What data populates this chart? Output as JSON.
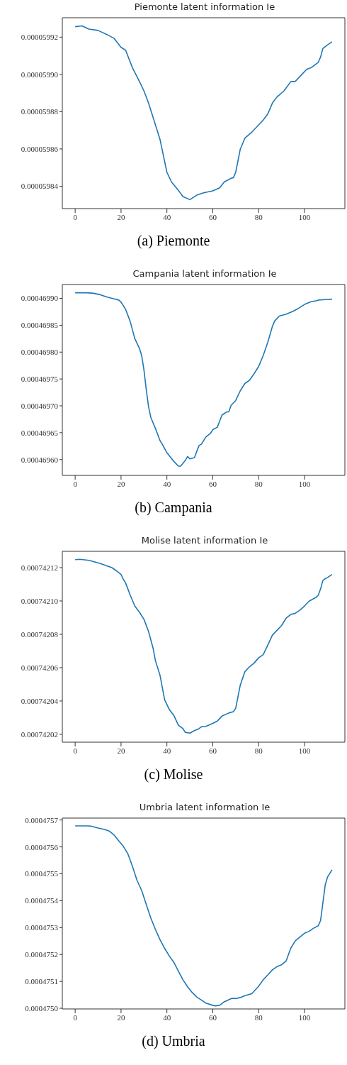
{
  "chart_data": [
    {
      "type": "line",
      "title": "Piemonte latent information Ie",
      "annotations": [
        "(a) Piemonte"
      ],
      "xlim": [
        -5.6,
        117.6
      ],
      "xticks": [
        0,
        20,
        40,
        60,
        80,
        100
      ],
      "ylim": [
        5.9828e-05,
        5.99304e-05
      ],
      "yticks": [
        {
          "value": 5.984e-05,
          "label": "0.00005984"
        },
        {
          "value": 5.986e-05,
          "label": "0.00005986"
        },
        {
          "value": 5.988e-05,
          "label": "0.00005988"
        },
        {
          "value": 5.99e-05,
          "label": "0.00005990"
        },
        {
          "value": 5.992e-05,
          "label": "0.00005992"
        }
      ],
      "x": [
        0,
        3,
        6,
        10,
        14,
        17,
        20,
        22,
        25,
        28,
        30,
        32,
        35,
        37,
        40,
        42,
        45,
        47,
        50,
        53,
        56,
        60,
        63,
        65,
        68,
        69,
        70,
        72,
        74,
        77,
        80,
        82,
        84,
        86,
        88,
        91,
        94,
        96,
        99,
        101,
        103,
        106,
        107,
        108,
        110,
        112
      ],
      "series": [
        {
          "color": "#1f77b4",
          "values": [
            5.99256e-05,
            5.9926e-05,
            5.99243e-05,
            5.99236e-05,
            5.99213e-05,
            5.99193e-05,
            5.99145e-05,
            5.9913e-05,
            5.99035e-05,
            5.98963e-05,
            5.98911e-05,
            5.98846e-05,
            5.98729e-05,
            5.98651e-05,
            5.98475e-05,
            5.98423e-05,
            5.98378e-05,
            5.98345e-05,
            5.98328e-05,
            5.98352e-05,
            5.98365e-05,
            5.98375e-05,
            5.98391e-05,
            5.98423e-05,
            5.98443e-05,
            5.98446e-05,
            5.98475e-05,
            5.98599e-05,
            5.98658e-05,
            5.9869e-05,
            5.98729e-05,
            5.98755e-05,
            5.98788e-05,
            5.98846e-05,
            5.98879e-05,
            5.98911e-05,
            5.98961e-05,
            5.98963e-05,
            5.99002e-05,
            5.99028e-05,
            5.99037e-05,
            5.99065e-05,
            5.99093e-05,
            5.99139e-05,
            5.99158e-05,
            5.99175e-05
          ]
        }
      ]
    },
    {
      "type": "line",
      "title": "Campania latent information Ie",
      "annotations": [
        "(b) Campania"
      ],
      "xlim": [
        -5.6,
        117.6
      ],
      "xticks": [
        0,
        20,
        40,
        60,
        80,
        100
      ],
      "ylim": [
        0.0004695706,
        0.0004699258
      ],
      "yticks": [
        {
          "value": 0.0004696,
          "label": "0.00046960"
        },
        {
          "value": 0.00046965,
          "label": "0.00046965"
        },
        {
          "value": 0.0004697,
          "label": "0.00046970"
        },
        {
          "value": 0.00046975,
          "label": "0.00046975"
        },
        {
          "value": 0.0004698,
          "label": "0.00046980"
        },
        {
          "value": 0.00046985,
          "label": "0.00046985"
        },
        {
          "value": 0.0004699,
          "label": "0.00046990"
        }
      ],
      "x": [
        0,
        5,
        8,
        11,
        14,
        17,
        19,
        20,
        22,
        24,
        26,
        28,
        29,
        30,
        31,
        32,
        33,
        35,
        37,
        38,
        40,
        43,
        45,
        46,
        48,
        49,
        50,
        52,
        54,
        55,
        57,
        59,
        60,
        62,
        64,
        66,
        67,
        68,
        70,
        72,
        74,
        76,
        78,
        80,
        82,
        84,
        86,
        87,
        89,
        92,
        95,
        97,
        100,
        103,
        105,
        106,
        109,
        112
      ],
      "series": [
        {
          "color": "#1f77b4",
          "values": [
            0.0004699104,
            0.0004699104,
            0.0004699095,
            0.0004699068,
            0.0004699023,
            0.0004698991,
            0.0004698969,
            0.0004698932,
            0.0004698796,
            0.000469857,
            0.0004698253,
            0.0004698072,
            0.0004697937,
            0.0004697665,
            0.0004697303,
            0.0004696986,
            0.0004696783,
            0.0004696579,
            0.0004696353,
            0.0004696285,
            0.0004696127,
            0.0004695968,
            0.0004695878,
            0.0004695878,
            0.0004695982,
            0.0004696059,
            0.0004696014,
            0.0004696036,
            0.0004696262,
            0.0004696285,
            0.0004696421,
            0.0004696489,
            0.0004696557,
            0.0004696602,
            0.0004696828,
            0.0004696887,
            0.0004696887,
            0.0004697009,
            0.00046971,
            0.0004697281,
            0.0004697416,
            0.0004697475,
            0.0004697597,
            0.0004697733,
            0.0004697937,
            0.0004698186,
            0.000469848,
            0.0004698579,
            0.000469867,
            0.0004698706,
            0.000469876,
            0.0004698805,
            0.0004698887,
            0.0004698941,
            0.0004698955,
            0.0004698969,
            0.0004698977,
            0.0004698986
          ]
        }
      ]
    },
    {
      "type": "line",
      "title": "Molise latent information Ie",
      "annotations": [
        "(c) Molise"
      ],
      "xlim": [
        -5.6,
        117.6
      ],
      "xticks": [
        0,
        20,
        40,
        60,
        80,
        100
      ],
      "ylim": [
        0.0007420153,
        0.0007421298
      ],
      "yticks": [
        {
          "value": 0.00074202,
          "label": "0.00074202"
        },
        {
          "value": 0.00074204,
          "label": "0.00074204"
        },
        {
          "value": 0.00074206,
          "label": "0.00074206"
        },
        {
          "value": 0.00074208,
          "label": "0.00074208"
        },
        {
          "value": 0.0007421,
          "label": "0.00074210"
        },
        {
          "value": 0.00074212,
          "label": "0.00074212"
        }
      ],
      "x": [
        0,
        2,
        6,
        8,
        11,
        14,
        16,
        18,
        20,
        21,
        22,
        24,
        26,
        28,
        30,
        32,
        34,
        35,
        37,
        39,
        41,
        43,
        45,
        47,
        48,
        50,
        52,
        54,
        55,
        57,
        60,
        62,
        64,
        67,
        69,
        70,
        72,
        74,
        76,
        78,
        80,
        82,
        84,
        86,
        88,
        90,
        92,
        94,
        96,
        98,
        100,
        102,
        105,
        106,
        107,
        108,
        109,
        110,
        112
      ],
      "series": [
        {
          "color": "#1f77b4",
          "values": [
            0.0007421248,
            0.000742125,
            0.0007421244,
            0.0007421236,
            0.0007421225,
            0.000742121,
            0.00074212,
            0.0007421181,
            0.0007421159,
            0.000742113,
            0.0007421108,
            0.0007421035,
            0.000742097,
            0.0007420933,
            0.000742089,
            0.0007420817,
            0.0007420715,
            0.0007420642,
            0.0007420554,
            0.0007420408,
            0.000742035,
            0.0007420314,
            0.0007420255,
            0.0007420234,
            0.0007420212,
            0.0007420207,
            0.0007420222,
            0.0007420234,
            0.0007420245,
            0.0007420248,
            0.0007420266,
            0.000742028,
            0.0007420309,
            0.0007420328,
            0.0007420336,
            0.0007420357,
            0.0007420496,
            0.0007420576,
            0.0007420605,
            0.0007420627,
            0.0007420659,
            0.0007420678,
            0.0007420736,
            0.0007420795,
            0.0007420824,
            0.0007420853,
            0.0007420897,
            0.0007420919,
            0.0007420926,
            0.0007420945,
            0.000742097,
            0.0007420999,
            0.0007421021,
            0.0007421035,
            0.0007421072,
            0.0007421123,
            0.0007421134,
            0.000742114,
            0.0007421159
          ]
        }
      ]
    },
    {
      "type": "line",
      "title": "Umbria latent information Ie",
      "annotations": [
        "(d) Umbria"
      ],
      "xlim": [
        -5.6,
        117.6
      ],
      "xticks": [
        0,
        20,
        40,
        60,
        80,
        100
      ],
      "ylim": [
        0.0004749975,
        0.0004757071
      ],
      "yticks": [
        {
          "value": 0.000475,
          "label": "0.0004750"
        },
        {
          "value": 0.0004751,
          "label": "0.0004751"
        },
        {
          "value": 0.0004752,
          "label": "0.0004752"
        },
        {
          "value": 0.0004753,
          "label": "0.0004753"
        },
        {
          "value": 0.0004754,
          "label": "0.0004754"
        },
        {
          "value": 0.0004755,
          "label": "0.0004755"
        },
        {
          "value": 0.0004756,
          "label": "0.0004756"
        },
        {
          "value": 0.0004757,
          "label": "0.0004757"
        }
      ],
      "x": [
        0,
        5,
        7,
        10,
        13,
        15,
        17,
        19,
        21,
        23,
        25,
        27,
        29,
        31,
        33,
        35,
        37,
        39,
        41,
        43,
        45,
        47,
        49,
        51,
        53,
        55,
        57,
        60,
        61,
        63,
        65,
        68,
        69,
        70,
        72,
        74,
        77,
        80,
        82,
        84,
        86,
        88,
        90,
        92,
        94,
        96,
        98,
        100,
        102,
        104,
        106,
        107,
        108,
        109,
        110,
        112
      ],
      "series": [
        {
          "color": "#1f77b4",
          "values": [
            0.000475678,
            0.000475678,
            0.000475677,
            0.00047567,
            0.000475664,
            0.000475658,
            0.000475644,
            0.000475623,
            0.000475602,
            0.000475574,
            0.000475527,
            0.000475475,
            0.000475438,
            0.000475386,
            0.000475335,
            0.000475293,
            0.000475255,
            0.000475223,
            0.000475195,
            0.000475171,
            0.000475138,
            0.000475106,
            0.00047508,
            0.000475059,
            0.000475042,
            0.000475031,
            0.000475019,
            0.000475011,
            0.000475009,
            0.000475011,
            0.000475024,
            0.000475036,
            0.000475037,
            0.000475036,
            0.00047504,
            0.000475047,
            0.000475054,
            0.000475082,
            0.000475106,
            0.000475124,
            0.000475143,
            0.000475155,
            0.000475162,
            0.000475176,
            0.000475223,
            0.000475251,
            0.000475265,
            0.000475279,
            0.000475286,
            0.000475298,
            0.000475307,
            0.000475326,
            0.000475391,
            0.000475457,
            0.000475487,
            0.000475515
          ]
        }
      ]
    }
  ]
}
